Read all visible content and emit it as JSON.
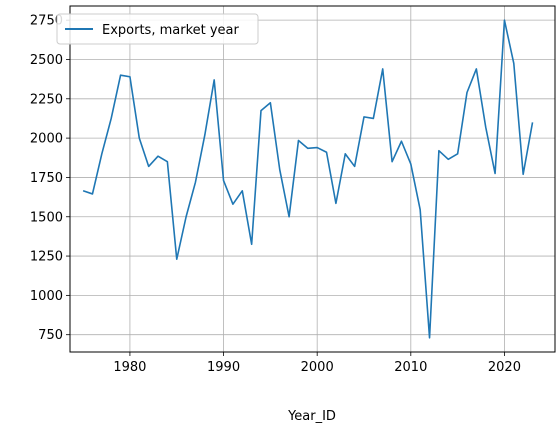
{
  "chart_data": {
    "type": "line",
    "title": "",
    "xlabel": "Year_ID",
    "ylabel": "",
    "xlim": [
      1973.6,
      2025.4
    ],
    "ylim": [
      640,
      2840
    ],
    "xticks": [
      1980,
      1990,
      2000,
      2010,
      2020
    ],
    "yticks": [
      750,
      1000,
      1250,
      1500,
      1750,
      2000,
      2250,
      2500,
      2750
    ],
    "grid": true,
    "legend_position": "top-left",
    "colors": {
      "series": "#1f77b4",
      "grid": "#b0b0b0"
    },
    "series": [
      {
        "name": "Exports, market year",
        "x": [
          1975,
          1976,
          1977,
          1978,
          1979,
          1980,
          1981,
          1982,
          1983,
          1984,
          1985,
          1986,
          1987,
          1988,
          1989,
          1990,
          1991,
          1992,
          1993,
          1994,
          1995,
          1996,
          1997,
          1998,
          1999,
          2000,
          2001,
          2002,
          2003,
          2004,
          2005,
          2006,
          2007,
          2008,
          2009,
          2010,
          2011,
          2012,
          2013,
          2014,
          2015,
          2016,
          2017,
          2018,
          2019,
          2020,
          2021,
          2022,
          2023
        ],
        "y": [
          1665,
          1645,
          1900,
          2125,
          2400,
          2390,
          2000,
          1820,
          1885,
          1850,
          1230,
          1500,
          1720,
          2020,
          2370,
          1730,
          1580,
          1665,
          1325,
          2175,
          2225,
          1800,
          1500,
          1985,
          1935,
          1940,
          1910,
          1585,
          1900,
          1820,
          2135,
          2125,
          2440,
          1850,
          1980,
          1835,
          1545,
          730,
          1920,
          1865,
          1900,
          2290,
          2440,
          2070,
          1775,
          2750,
          2475,
          1770,
          2100
        ]
      }
    ]
  }
}
